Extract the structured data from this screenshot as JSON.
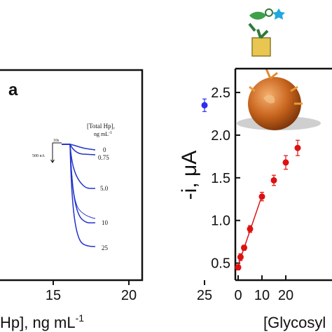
{
  "chart_data": [
    {
      "type": "scatter",
      "panel_letter": "a",
      "xlabel": "Hp], ng mL",
      "xlabel_sup": "-1",
      "x_ticks": [
        15,
        20,
        25
      ],
      "points": [
        {
          "x": 25,
          "y": 2.35
        }
      ],
      "point_color": "#2d2df0",
      "inset": {
        "legend_title_1": "[Total Hp],",
        "legend_title_2": "ng mL",
        "legend_title_sup": "-1",
        "time_scale": "10s",
        "current_scale": "500 nA",
        "trace_labels": [
          "0",
          "0.75",
          "5.0",
          "10",
          "25"
        ],
        "trace_color": "#2233cc"
      }
    },
    {
      "type": "scatter",
      "ylabel": "-i, μA",
      "xlabel": "[Glycosyl",
      "ylim": [
        0.3,
        2.55
      ],
      "y_ticks": [
        "0.5",
        "1.0",
        "1.5",
        "2.0",
        "2.5"
      ],
      "x_ticks": [
        "0",
        "10",
        "20"
      ],
      "point_color": "#dd1111",
      "points": [
        {
          "x": 0,
          "y": 0.45,
          "err": 0.03
        },
        {
          "x": 1,
          "y": 0.57,
          "err": 0.04
        },
        {
          "x": 2.5,
          "y": 0.68,
          "err": 0.03
        },
        {
          "x": 5,
          "y": 0.9,
          "err": 0.04
        },
        {
          "x": 10,
          "y": 1.28,
          "err": 0.05
        },
        {
          "x": 15,
          "y": 1.47,
          "err": 0.06
        },
        {
          "x": 20,
          "y": 1.68,
          "err": 0.08
        },
        {
          "x": 25,
          "y": 1.85,
          "err": 0.09
        }
      ],
      "fit_line": {
        "x_start": 0,
        "x_end": 10
      }
    }
  ]
}
